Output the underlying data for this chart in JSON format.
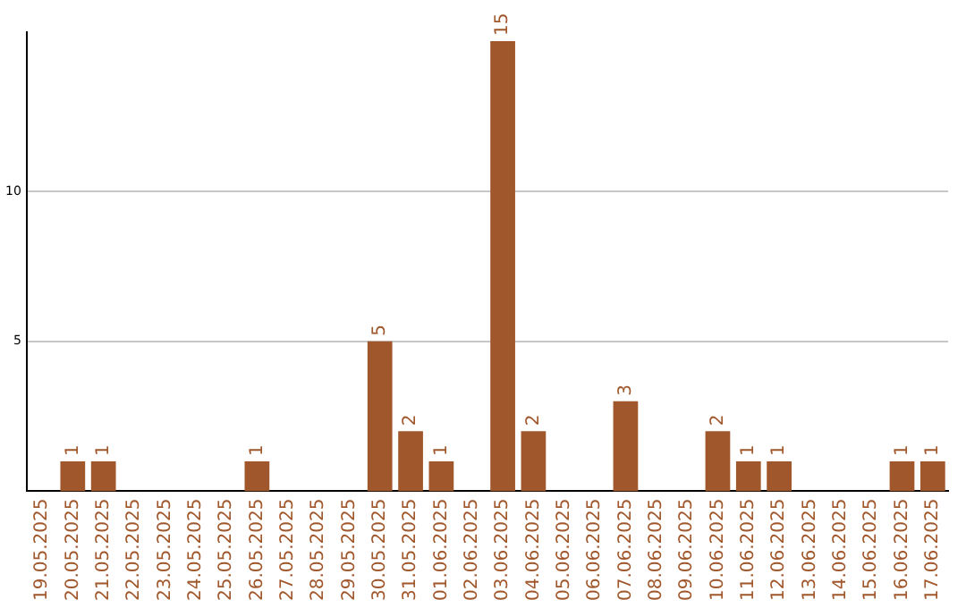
{
  "chart_data": {
    "type": "bar",
    "categories": [
      "19.05.2025",
      "20.05.2025",
      "21.05.2025",
      "22.05.2025",
      "23.05.2025",
      "24.05.2025",
      "25.05.2025",
      "26.05.2025",
      "27.05.2025",
      "28.05.2025",
      "29.05.2025",
      "30.05.2025",
      "31.05.2025",
      "01.06.2025",
      "02.06.2025",
      "03.06.2025",
      "04.06.2025",
      "05.06.2025",
      "06.06.2025",
      "07.06.2025",
      "08.06.2025",
      "09.06.2025",
      "10.06.2025",
      "11.06.2025",
      "12.06.2025",
      "13.06.2025",
      "14.06.2025",
      "15.06.2025",
      "16.06.2025",
      "17.06.2025"
    ],
    "values": [
      0,
      1,
      1,
      0,
      0,
      0,
      0,
      1,
      0,
      0,
      0,
      5,
      2,
      1,
      0,
      15,
      2,
      0,
      0,
      3,
      0,
      0,
      2,
      1,
      1,
      0,
      0,
      0,
      1,
      1
    ],
    "value_labels": [
      null,
      "1",
      "1",
      null,
      null,
      null,
      null,
      "1",
      null,
      null,
      null,
      "5",
      "2",
      "1",
      null,
      "15",
      "2",
      null,
      null,
      "3",
      null,
      null,
      "2",
      "1",
      "1",
      null,
      null,
      null,
      "1",
      "1"
    ],
    "color": "#a0572b",
    "ylim": [
      0,
      15.3
    ],
    "yticks": [
      5,
      10
    ],
    "grid": "y"
  }
}
